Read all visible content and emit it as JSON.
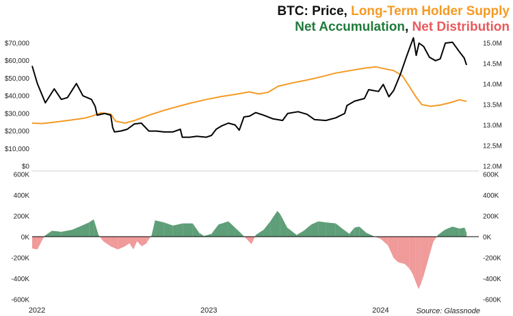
{
  "chart_data": {
    "type": "line",
    "title_parts": [
      {
        "text": "BTC: Price, ",
        "color": "#111111"
      },
      {
        "text": "Long-Term Holder Supply",
        "color": "#f59a23"
      }
    ],
    "subtitle_parts": [
      {
        "text": "Net Accumulation",
        "color": "#1f7a3a"
      },
      {
        "text": ", ",
        "color": "#111111"
      },
      {
        "text": "Net Distribution",
        "color": "#e8595c"
      }
    ],
    "source": "Source: Glassnode",
    "x_ticks": [
      {
        "label": "2022",
        "date": "2022-01-01"
      },
      {
        "label": "2023",
        "date": "2023-01-01"
      },
      {
        "label": "2024",
        "date": "2024-01-01"
      }
    ],
    "x_range": [
      "2021-12-25",
      "2024-07-31"
    ],
    "top_panel": {
      "left_axis": {
        "min": 0,
        "max": 70000,
        "ticks": [
          "$0",
          "$10,000",
          "$20,000",
          "$30,000",
          "$40,000",
          "$50,000",
          "$60,000",
          "$70,000"
        ]
      },
      "right_axis": {
        "min": 12.0,
        "max": 15.0,
        "unit": "M",
        "ticks": [
          "12.0M",
          "12.5M",
          "13.0M",
          "13.5M",
          "14.0M",
          "14.5M",
          "15.0M"
        ]
      },
      "series": [
        {
          "color": "#000000",
          "axis": "left",
          "points": [
            [
              "2021-12-25",
              57000
            ],
            [
              "2022-01-05",
              47000
            ],
            [
              "2022-01-22",
              36000
            ],
            [
              "2022-02-10",
              44000
            ],
            [
              "2022-02-25",
              38000
            ],
            [
              "2022-03-10",
              39000
            ],
            [
              "2022-03-29",
              47000
            ],
            [
              "2022-04-12",
              40000
            ],
            [
              "2022-04-30",
              38000
            ],
            [
              "2022-05-08",
              34000
            ],
            [
              "2022-05-12",
              29000
            ],
            [
              "2022-05-28",
              30000
            ],
            [
              "2022-06-10",
              29000
            ],
            [
              "2022-06-14",
              22000
            ],
            [
              "2022-06-18",
              19500
            ],
            [
              "2022-07-01",
              20000
            ],
            [
              "2022-07-15",
              21000
            ],
            [
              "2022-07-30",
              24000
            ],
            [
              "2022-08-14",
              24500
            ],
            [
              "2022-08-30",
              20000
            ],
            [
              "2022-09-15",
              20000
            ],
            [
              "2022-10-01",
              19500
            ],
            [
              "2022-10-20",
              19500
            ],
            [
              "2022-11-05",
              21000
            ],
            [
              "2022-11-09",
              16500
            ],
            [
              "2022-11-25",
              16500
            ],
            [
              "2022-12-10",
              17000
            ],
            [
              "2022-12-30",
              16500
            ],
            [
              "2023-01-10",
              17500
            ],
            [
              "2023-01-20",
              21000
            ],
            [
              "2023-02-01",
              23000
            ],
            [
              "2023-02-15",
              24500
            ],
            [
              "2023-03-01",
              23500
            ],
            [
              "2023-03-10",
              20500
            ],
            [
              "2023-03-20",
              28000
            ],
            [
              "2023-04-01",
              28500
            ],
            [
              "2023-04-14",
              30500
            ],
            [
              "2023-05-01",
              29000
            ],
            [
              "2023-05-20",
              27000
            ],
            [
              "2023-06-10",
              26000
            ],
            [
              "2023-06-21",
              30000
            ],
            [
              "2023-07-13",
              31000
            ],
            [
              "2023-08-01",
              29500
            ],
            [
              "2023-08-17",
              26500
            ],
            [
              "2023-09-10",
              26000
            ],
            [
              "2023-10-01",
              27500
            ],
            [
              "2023-10-20",
              30000
            ],
            [
              "2023-10-25",
              34500
            ],
            [
              "2023-11-10",
              37000
            ],
            [
              "2023-12-01",
              38500
            ],
            [
              "2023-12-10",
              43500
            ],
            [
              "2023-12-31",
              42500
            ],
            [
              "2024-01-10",
              46500
            ],
            [
              "2024-01-22",
              39500
            ],
            [
              "2024-02-01",
              43000
            ],
            [
              "2024-02-15",
              52000
            ],
            [
              "2024-02-28",
              62000
            ],
            [
              "2024-03-05",
              66500
            ],
            [
              "2024-03-14",
              73000
            ],
            [
              "2024-03-20",
              63000
            ],
            [
              "2024-03-26",
              70000
            ],
            [
              "2024-04-05",
              68000
            ],
            [
              "2024-04-17",
              62000
            ],
            [
              "2024-04-30",
              60000
            ],
            [
              "2024-05-10",
              61000
            ],
            [
              "2024-05-21",
              70000
            ],
            [
              "2024-06-05",
              70500
            ],
            [
              "2024-06-20",
              65000
            ],
            [
              "2024-06-30",
              61500
            ],
            [
              "2024-07-05",
              57500
            ]
          ]
        },
        {
          "color": "#f59a23",
          "axis": "right",
          "points": [
            [
              "2021-12-25",
              13.05
            ],
            [
              "2022-01-15",
              13.04
            ],
            [
              "2022-02-15",
              13.08
            ],
            [
              "2022-03-15",
              13.12
            ],
            [
              "2022-04-15",
              13.17
            ],
            [
              "2022-05-01",
              13.22
            ],
            [
              "2022-05-20",
              13.3
            ],
            [
              "2022-06-10",
              13.27
            ],
            [
              "2022-06-20",
              13.1
            ],
            [
              "2022-07-10",
              13.05
            ],
            [
              "2022-08-01",
              13.12
            ],
            [
              "2022-09-01",
              13.25
            ],
            [
              "2022-10-01",
              13.36
            ],
            [
              "2022-11-01",
              13.46
            ],
            [
              "2022-12-01",
              13.55
            ],
            [
              "2023-01-01",
              13.63
            ],
            [
              "2023-02-01",
              13.7
            ],
            [
              "2023-03-01",
              13.75
            ],
            [
              "2023-04-01",
              13.81
            ],
            [
              "2023-04-20",
              13.76
            ],
            [
              "2023-05-10",
              13.8
            ],
            [
              "2023-06-01",
              13.95
            ],
            [
              "2023-07-01",
              14.03
            ],
            [
              "2023-08-01",
              14.1
            ],
            [
              "2023-09-01",
              14.18
            ],
            [
              "2023-10-01",
              14.27
            ],
            [
              "2023-11-01",
              14.33
            ],
            [
              "2023-12-01",
              14.39
            ],
            [
              "2023-12-25",
              14.42
            ],
            [
              "2024-01-10",
              14.38
            ],
            [
              "2024-02-01",
              14.33
            ],
            [
              "2024-02-20",
              14.2
            ],
            [
              "2024-03-05",
              13.95
            ],
            [
              "2024-03-20",
              13.68
            ],
            [
              "2024-04-01",
              13.5
            ],
            [
              "2024-04-20",
              13.46
            ],
            [
              "2024-05-10",
              13.49
            ],
            [
              "2024-06-01",
              13.55
            ],
            [
              "2024-06-20",
              13.62
            ],
            [
              "2024-07-05",
              13.58
            ]
          ]
        }
      ]
    },
    "bottom_panel": {
      "axis": {
        "min": -600000,
        "max": 600000,
        "ticks_left": [
          "-600K",
          "-400K",
          "-200K",
          "0K",
          "200K",
          "400K",
          "600K"
        ],
        "ticks_right": [
          "-600K",
          "-400K",
          "-200K",
          "0K",
          "200K",
          "400K",
          "600K"
        ]
      },
      "positive_color": "#5e9e78",
      "negative_color": "#f09a9a",
      "points": [
        [
          "2021-12-25",
          -110000
        ],
        [
          "2022-01-05",
          -120000
        ],
        [
          "2022-01-12",
          -60000
        ],
        [
          "2022-01-20",
          10000
        ],
        [
          "2022-02-05",
          60000
        ],
        [
          "2022-02-25",
          50000
        ],
        [
          "2022-03-20",
          70000
        ],
        [
          "2022-04-10",
          110000
        ],
        [
          "2022-04-25",
          140000
        ],
        [
          "2022-05-05",
          170000
        ],
        [
          "2022-05-15",
          20000
        ],
        [
          "2022-05-25",
          -40000
        ],
        [
          "2022-06-10",
          -90000
        ],
        [
          "2022-06-25",
          -120000
        ],
        [
          "2022-07-10",
          -90000
        ],
        [
          "2022-07-20",
          -60000
        ],
        [
          "2022-07-28",
          -120000
        ],
        [
          "2022-08-05",
          -40000
        ],
        [
          "2022-08-15",
          -90000
        ],
        [
          "2022-08-25",
          -60000
        ],
        [
          "2022-09-05",
          20000
        ],
        [
          "2022-09-12",
          160000
        ],
        [
          "2022-10-01",
          140000
        ],
        [
          "2022-10-20",
          110000
        ],
        [
          "2022-11-10",
          130000
        ],
        [
          "2022-12-01",
          130000
        ],
        [
          "2022-12-15",
          40000
        ],
        [
          "2022-12-25",
          10000
        ],
        [
          "2023-01-10",
          30000
        ],
        [
          "2023-01-25",
          120000
        ],
        [
          "2023-02-15",
          150000
        ],
        [
          "2023-03-01",
          90000
        ],
        [
          "2023-03-15",
          30000
        ],
        [
          "2023-03-28",
          -30000
        ],
        [
          "2023-04-05",
          -70000
        ],
        [
          "2023-04-14",
          20000
        ],
        [
          "2023-05-01",
          70000
        ],
        [
          "2023-05-15",
          150000
        ],
        [
          "2023-05-30",
          250000
        ],
        [
          "2023-06-05",
          220000
        ],
        [
          "2023-06-20",
          90000
        ],
        [
          "2023-07-10",
          20000
        ],
        [
          "2023-07-25",
          60000
        ],
        [
          "2023-08-10",
          120000
        ],
        [
          "2023-08-25",
          150000
        ],
        [
          "2023-09-10",
          140000
        ],
        [
          "2023-10-01",
          130000
        ],
        [
          "2023-10-15",
          80000
        ],
        [
          "2023-10-30",
          30000
        ],
        [
          "2023-11-10",
          90000
        ],
        [
          "2023-11-20",
          100000
        ],
        [
          "2023-12-05",
          40000
        ],
        [
          "2023-12-20",
          10000
        ],
        [
          "2024-01-05",
          -20000
        ],
        [
          "2024-01-20",
          -80000
        ],
        [
          "2024-02-01",
          -200000
        ],
        [
          "2024-02-10",
          -240000
        ],
        [
          "2024-02-25",
          -260000
        ],
        [
          "2024-03-05",
          -300000
        ],
        [
          "2024-03-12",
          -350000
        ],
        [
          "2024-03-18",
          -420000
        ],
        [
          "2024-03-25",
          -500000
        ],
        [
          "2024-03-30",
          -450000
        ],
        [
          "2024-04-05",
          -370000
        ],
        [
          "2024-04-15",
          -210000
        ],
        [
          "2024-04-25",
          -50000
        ],
        [
          "2024-05-05",
          20000
        ],
        [
          "2024-05-20",
          70000
        ],
        [
          "2024-06-05",
          100000
        ],
        [
          "2024-06-20",
          80000
        ],
        [
          "2024-07-01",
          90000
        ],
        [
          "2024-07-05",
          40000
        ]
      ]
    }
  }
}
